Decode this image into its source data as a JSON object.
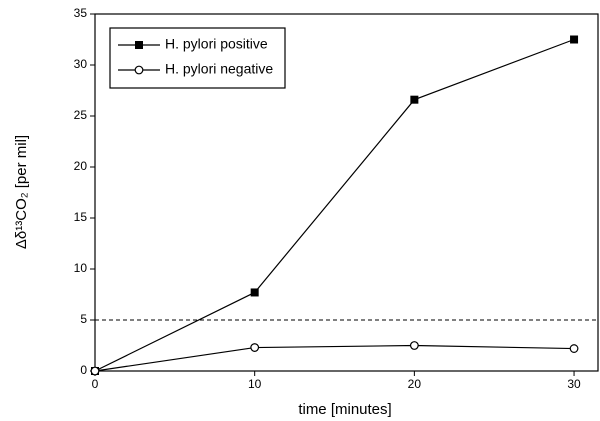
{
  "chart_data": {
    "type": "line",
    "xlabel": "time  [minutes]",
    "ylabel": "Δδ¹³CO₂ [per mil]",
    "x": [
      0,
      10,
      20,
      30
    ],
    "series": [
      {
        "name": "H. pylori positive",
        "color": "#000000",
        "marker": "square",
        "values": [
          0,
          7.7,
          26.6,
          32.5
        ]
      },
      {
        "name": "H. pylori negative",
        "color": "#000000",
        "marker": "circle",
        "values": [
          0,
          2.3,
          2.5,
          2.2
        ]
      }
    ],
    "threshold": 5,
    "xlim": [
      0,
      31.5
    ],
    "xticks": [
      0,
      10,
      20,
      30
    ],
    "ylim": [
      0,
      35
    ],
    "yticks": [
      0,
      5,
      10,
      15,
      20,
      25,
      30,
      35
    ],
    "legend": "upper-left"
  }
}
